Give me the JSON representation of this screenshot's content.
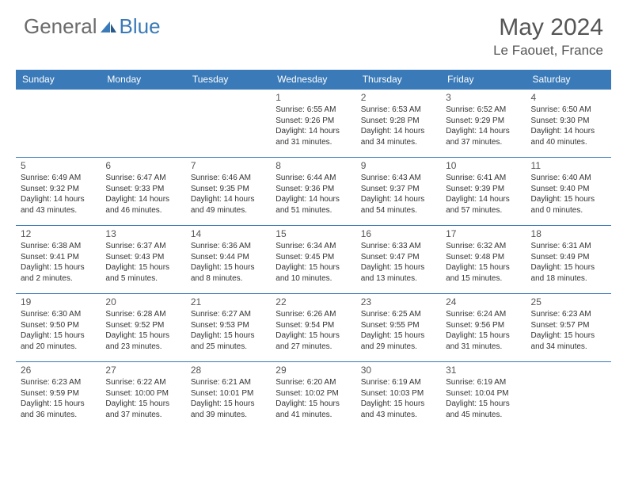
{
  "logo": {
    "text_gray": "General",
    "text_blue": "Blue"
  },
  "title": "May 2024",
  "location": "Le Faouet, France",
  "colors": {
    "header_bg": "#3a7ab8",
    "header_text": "#ffffff",
    "rule": "#3a7ab8",
    "body_text": "#333333",
    "logo_gray": "#6b6b6b",
    "logo_blue": "#3a7ab8"
  },
  "day_names": [
    "Sunday",
    "Monday",
    "Tuesday",
    "Wednesday",
    "Thursday",
    "Friday",
    "Saturday"
  ],
  "weeks": [
    [
      null,
      null,
      null,
      {
        "n": "1",
        "sr": "6:55 AM",
        "ss": "9:26 PM",
        "dl": "14 hours and 31 minutes."
      },
      {
        "n": "2",
        "sr": "6:53 AM",
        "ss": "9:28 PM",
        "dl": "14 hours and 34 minutes."
      },
      {
        "n": "3",
        "sr": "6:52 AM",
        "ss": "9:29 PM",
        "dl": "14 hours and 37 minutes."
      },
      {
        "n": "4",
        "sr": "6:50 AM",
        "ss": "9:30 PM",
        "dl": "14 hours and 40 minutes."
      }
    ],
    [
      {
        "n": "5",
        "sr": "6:49 AM",
        "ss": "9:32 PM",
        "dl": "14 hours and 43 minutes."
      },
      {
        "n": "6",
        "sr": "6:47 AM",
        "ss": "9:33 PM",
        "dl": "14 hours and 46 minutes."
      },
      {
        "n": "7",
        "sr": "6:46 AM",
        "ss": "9:35 PM",
        "dl": "14 hours and 49 minutes."
      },
      {
        "n": "8",
        "sr": "6:44 AM",
        "ss": "9:36 PM",
        "dl": "14 hours and 51 minutes."
      },
      {
        "n": "9",
        "sr": "6:43 AM",
        "ss": "9:37 PM",
        "dl": "14 hours and 54 minutes."
      },
      {
        "n": "10",
        "sr": "6:41 AM",
        "ss": "9:39 PM",
        "dl": "14 hours and 57 minutes."
      },
      {
        "n": "11",
        "sr": "6:40 AM",
        "ss": "9:40 PM",
        "dl": "15 hours and 0 minutes."
      }
    ],
    [
      {
        "n": "12",
        "sr": "6:38 AM",
        "ss": "9:41 PM",
        "dl": "15 hours and 2 minutes."
      },
      {
        "n": "13",
        "sr": "6:37 AM",
        "ss": "9:43 PM",
        "dl": "15 hours and 5 minutes."
      },
      {
        "n": "14",
        "sr": "6:36 AM",
        "ss": "9:44 PM",
        "dl": "15 hours and 8 minutes."
      },
      {
        "n": "15",
        "sr": "6:34 AM",
        "ss": "9:45 PM",
        "dl": "15 hours and 10 minutes."
      },
      {
        "n": "16",
        "sr": "6:33 AM",
        "ss": "9:47 PM",
        "dl": "15 hours and 13 minutes."
      },
      {
        "n": "17",
        "sr": "6:32 AM",
        "ss": "9:48 PM",
        "dl": "15 hours and 15 minutes."
      },
      {
        "n": "18",
        "sr": "6:31 AM",
        "ss": "9:49 PM",
        "dl": "15 hours and 18 minutes."
      }
    ],
    [
      {
        "n": "19",
        "sr": "6:30 AM",
        "ss": "9:50 PM",
        "dl": "15 hours and 20 minutes."
      },
      {
        "n": "20",
        "sr": "6:28 AM",
        "ss": "9:52 PM",
        "dl": "15 hours and 23 minutes."
      },
      {
        "n": "21",
        "sr": "6:27 AM",
        "ss": "9:53 PM",
        "dl": "15 hours and 25 minutes."
      },
      {
        "n": "22",
        "sr": "6:26 AM",
        "ss": "9:54 PM",
        "dl": "15 hours and 27 minutes."
      },
      {
        "n": "23",
        "sr": "6:25 AM",
        "ss": "9:55 PM",
        "dl": "15 hours and 29 minutes."
      },
      {
        "n": "24",
        "sr": "6:24 AM",
        "ss": "9:56 PM",
        "dl": "15 hours and 31 minutes."
      },
      {
        "n": "25",
        "sr": "6:23 AM",
        "ss": "9:57 PM",
        "dl": "15 hours and 34 minutes."
      }
    ],
    [
      {
        "n": "26",
        "sr": "6:23 AM",
        "ss": "9:59 PM",
        "dl": "15 hours and 36 minutes."
      },
      {
        "n": "27",
        "sr": "6:22 AM",
        "ss": "10:00 PM",
        "dl": "15 hours and 37 minutes."
      },
      {
        "n": "28",
        "sr": "6:21 AM",
        "ss": "10:01 PM",
        "dl": "15 hours and 39 minutes."
      },
      {
        "n": "29",
        "sr": "6:20 AM",
        "ss": "10:02 PM",
        "dl": "15 hours and 41 minutes."
      },
      {
        "n": "30",
        "sr": "6:19 AM",
        "ss": "10:03 PM",
        "dl": "15 hours and 43 minutes."
      },
      {
        "n": "31",
        "sr": "6:19 AM",
        "ss": "10:04 PM",
        "dl": "15 hours and 45 minutes."
      },
      null
    ]
  ]
}
